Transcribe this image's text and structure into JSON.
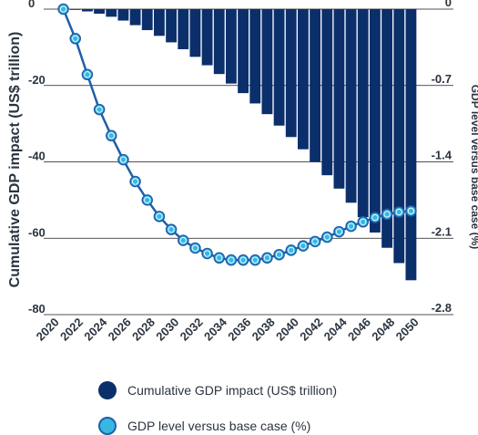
{
  "colors": {
    "bar": "#0b2f6b",
    "line": "#1f5fa8",
    "marker_fill": "#38b7e3",
    "marker_stroke": "#ffffff",
    "grid": "#1a1a1a",
    "text": "#2b3440"
  },
  "chart_data": {
    "type": "bar+line",
    "categories": [
      "2020",
      "2021",
      "2022",
      "2023",
      "2024",
      "2025",
      "2026",
      "2027",
      "2028",
      "2029",
      "2030",
      "2031",
      "2032",
      "2033",
      "2034",
      "2035",
      "2036",
      "2037",
      "2038",
      "2039",
      "2040",
      "2041",
      "2042",
      "2043",
      "2044",
      "2045",
      "2046",
      "2047",
      "2048",
      "2049"
    ],
    "x_tick_labels": [
      "2020",
      "2022",
      "2024",
      "2026",
      "2028",
      "2030",
      "2032",
      "2034",
      "2036",
      "2038",
      "2040",
      "2042",
      "2044",
      "2046",
      "2048",
      "2050"
    ],
    "series": [
      {
        "name": "Cumulative GDP impact (US$ trillion)",
        "type": "bar",
        "axis": "left",
        "values": [
          0,
          -0.2,
          -0.6,
          -1.2,
          -2.0,
          -3.0,
          -4.2,
          -5.5,
          -7.0,
          -8.7,
          -10.5,
          -12.5,
          -14.7,
          -17.0,
          -19.5,
          -22.0,
          -24.7,
          -27.5,
          -30.5,
          -33.5,
          -36.7,
          -40.0,
          -43.5,
          -47.0,
          -50.7,
          -54.5,
          -58.5,
          -62.5,
          -66.5,
          -71.0
        ]
      },
      {
        "name": "GDP level versus base case (%)",
        "type": "line",
        "axis": "right",
        "values": [
          0.0,
          -0.27,
          -0.6,
          -0.92,
          -1.16,
          -1.38,
          -1.58,
          -1.75,
          -1.9,
          -2.02,
          -2.12,
          -2.19,
          -2.24,
          -2.28,
          -2.3,
          -2.3,
          -2.3,
          -2.28,
          -2.25,
          -2.21,
          -2.17,
          -2.13,
          -2.09,
          -2.04,
          -1.99,
          -1.95,
          -1.91,
          -1.88,
          -1.86,
          -1.85
        ]
      }
    ],
    "y_left": {
      "label": "Cumulative GDP impact (US$ trillion)",
      "ticks": [
        "0",
        "-20",
        "-40",
        "-60",
        "-80"
      ],
      "range": [
        -80,
        0
      ]
    },
    "y_right": {
      "label": "GDP level versus base case (%)",
      "ticks": [
        "0",
        "-0.7",
        "-1.4",
        "-2.1",
        "-2.8"
      ],
      "range": [
        -2.8,
        0
      ]
    },
    "grid": true,
    "legend_position": "bottom"
  },
  "legend": {
    "bar_label": "Cumulative GDP impact (US$ trillion)",
    "line_label": "GDP level versus base case (%)"
  }
}
